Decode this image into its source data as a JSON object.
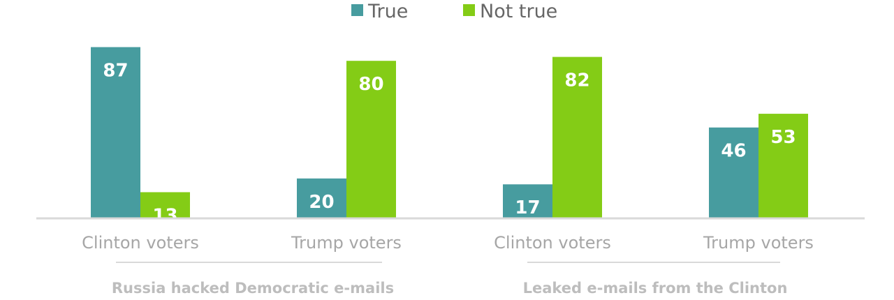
{
  "chart_data": {
    "type": "bar",
    "ylim": [
      0,
      100
    ],
    "legend": {
      "placement": "top-center",
      "entries": [
        {
          "name": "True",
          "color": "#479c9f"
        },
        {
          "name": "Not true",
          "color": "#84cc16"
        }
      ]
    },
    "groups": [
      {
        "label": "Russia hacked Democratic e-mails",
        "categories": [
          "Clinton voters",
          "Trump voters"
        ]
      },
      {
        "label": "Leaked e-mails from the Clinton",
        "categories": [
          "Clinton voters",
          "Trump voters"
        ]
      }
    ],
    "categories": [
      "Clinton voters",
      "Trump voters",
      "Clinton voters",
      "Trump voters"
    ],
    "series": [
      {
        "name": "True",
        "color": "#479c9f",
        "values": [
          87,
          20,
          17,
          46
        ]
      },
      {
        "name": "Not true",
        "color": "#84cc16",
        "values": [
          13,
          80,
          82,
          53
        ]
      }
    ],
    "grid": false,
    "axis_color": "#d9d9d9"
  }
}
